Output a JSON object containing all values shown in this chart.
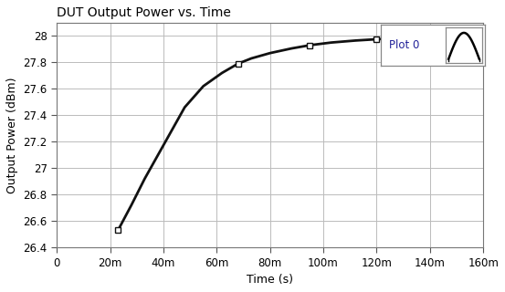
{
  "title": "DUT Output Power vs. Time",
  "xlabel": "Time (s)",
  "ylabel": "Output Power (dBm)",
  "xlim": [
    0,
    0.16
  ],
  "ylim": [
    26.4,
    28.1
  ],
  "xticks": [
    0,
    0.02,
    0.04,
    0.06,
    0.08,
    0.1,
    0.12,
    0.14,
    0.16
  ],
  "xtick_labels": [
    "0",
    "20m",
    "40m",
    "60m",
    "80m",
    "100m",
    "120m",
    "140m",
    "160m"
  ],
  "yticks": [
    26.4,
    26.6,
    26.8,
    27.0,
    27.2,
    27.4,
    27.6,
    27.8,
    28.0
  ],
  "ytick_labels": [
    "26.4",
    "26.6",
    "26.8",
    "27",
    "27.2",
    "27.4",
    "27.6",
    "27.8",
    "28"
  ],
  "x_data": [
    0.023,
    0.028,
    0.033,
    0.038,
    0.043,
    0.048,
    0.055,
    0.062,
    0.068,
    0.073,
    0.08,
    0.088,
    0.095,
    0.103,
    0.112,
    0.12,
    0.128,
    0.135,
    0.142,
    0.15
  ],
  "y_data": [
    26.53,
    26.72,
    26.92,
    27.1,
    27.28,
    27.46,
    27.62,
    27.72,
    27.79,
    27.83,
    27.87,
    27.905,
    27.93,
    27.95,
    27.965,
    27.975,
    27.982,
    27.987,
    27.991,
    27.995
  ],
  "marker_x": [
    0.023,
    0.068,
    0.095,
    0.12,
    0.142,
    0.15
  ],
  "marker_y": [
    26.53,
    27.79,
    27.93,
    27.975,
    27.991,
    27.995
  ],
  "line_color": "#111111",
  "line_width": 2.0,
  "background_color": "#ffffff",
  "grid_color": "#bbbbbb",
  "legend_label": "Plot 0",
  "title_fontsize": 10,
  "axis_label_fontsize": 9,
  "tick_fontsize": 8.5
}
